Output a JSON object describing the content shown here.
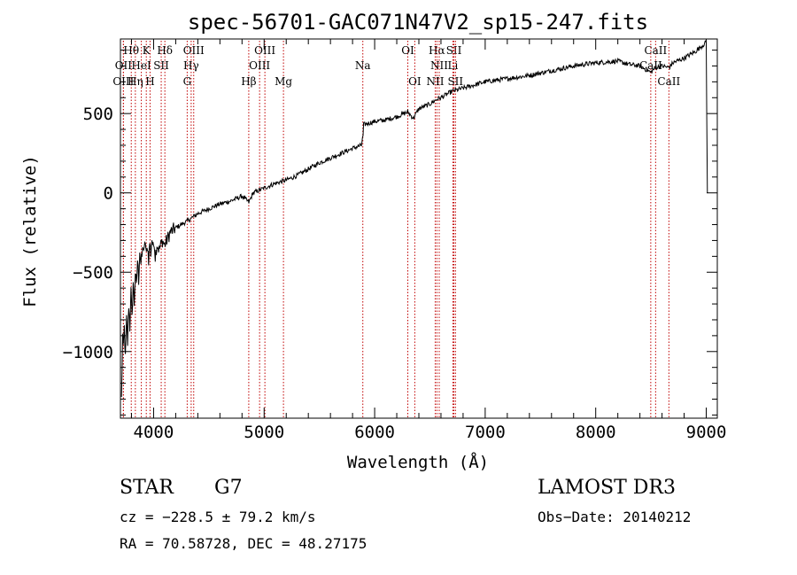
{
  "chart_data": {
    "type": "line",
    "title": "spec-56701-GAC071N47V2_sp15-247.fits",
    "xlabel": "Wavelength (Å)",
    "ylabel": "Flux (relative)",
    "xlim": [
      3700,
      9100
    ],
    "ylim": [
      -1420,
      970
    ],
    "xticks": [
      4000,
      5000,
      6000,
      7000,
      8000,
      9000
    ],
    "xtick_labels": [
      "4000",
      "5000",
      "6000",
      "7000",
      "8000",
      "9000"
    ],
    "yticks": [
      500,
      0,
      -500,
      -1000
    ],
    "ytick_labels": [
      "500",
      "0",
      "−500",
      "−1000"
    ],
    "series": [
      {
        "name": "spectrum",
        "x": [
          3710,
          3720,
          3725,
          3735,
          3745,
          3755,
          3765,
          3775,
          3785,
          3795,
          3805,
          3815,
          3825,
          3835,
          3845,
          3855,
          3865,
          3875,
          3885,
          3895,
          3905,
          3915,
          3925,
          3935,
          3945,
          3955,
          3965,
          3975,
          3985,
          3995,
          4005,
          4015,
          4030,
          4050,
          4080,
          4100,
          4150,
          4200,
          4300,
          4400,
          4500,
          4600,
          4700,
          4800,
          4862,
          4900,
          5000,
          5100,
          5200,
          5300,
          5400,
          5500,
          5600,
          5700,
          5800,
          5880,
          5895,
          5900,
          5950,
          6000,
          6100,
          6200,
          6300,
          6350,
          6400,
          6500,
          6563,
          6600,
          6700,
          6800,
          6900,
          7000,
          7200,
          7400,
          7600,
          7800,
          8000,
          8200,
          8300,
          8400,
          8498,
          8542,
          8600,
          8662,
          8700,
          8800,
          8850,
          8900,
          8950,
          9000,
          9010
        ],
        "values": [
          -1300,
          -900,
          -1000,
          -850,
          -1050,
          -800,
          -950,
          -700,
          -850,
          -620,
          -800,
          -560,
          -700,
          -500,
          -600,
          -420,
          -550,
          -360,
          -450,
          -400,
          -330,
          -380,
          -300,
          -400,
          -330,
          -420,
          -310,
          -380,
          -290,
          -350,
          -300,
          -400,
          -320,
          -360,
          -300,
          -330,
          -250,
          -220,
          -180,
          -130,
          -100,
          -70,
          -50,
          -20,
          -60,
          0,
          30,
          60,
          80,
          110,
          150,
          190,
          220,
          250,
          280,
          300,
          360,
          430,
          440,
          450,
          460,
          480,
          510,
          470,
          530,
          560,
          590,
          600,
          640,
          660,
          680,
          700,
          720,
          740,
          770,
          800,
          820,
          830,
          810,
          800,
          760,
          790,
          800,
          790,
          820,
          850,
          870,
          890,
          920,
          950,
          0
        ]
      }
    ],
    "lines": [
      {
        "label": "Hθ",
        "x": 3798,
        "row": 1
      },
      {
        "label": "K",
        "x": 3934,
        "row": 1
      },
      {
        "label": "Hδ",
        "x": 4102,
        "row": 1
      },
      {
        "label": "OIII",
        "x": 4363,
        "row": 1
      },
      {
        "label": "OIII",
        "x": 5007,
        "row": 1
      },
      {
        "label": "OI",
        "x": 6300,
        "row": 1
      },
      {
        "label": "Hα",
        "x": 6563,
        "row": 1
      },
      {
        "label": "SII",
        "x": 6717,
        "row": 1
      },
      {
        "label": "CaII",
        "x": 8542,
        "row": 1
      },
      {
        "label": "OII",
        "x": 3727,
        "row": 2
      },
      {
        "label": "HeI",
        "x": 3889,
        "row": 2
      },
      {
        "label": "SII",
        "x": 4069,
        "row": 2
      },
      {
        "label": "Hγ",
        "x": 4340,
        "row": 2
      },
      {
        "label": "OIII",
        "x": 4959,
        "row": 2
      },
      {
        "label": "Na",
        "x": 5893,
        "row": 2
      },
      {
        "label": "NII",
        "x": 6584,
        "row": 2
      },
      {
        "label": "Li",
        "x": 6708,
        "row": 2
      },
      {
        "label": "CaII",
        "x": 8498,
        "row": 2
      },
      {
        "label": "OIII",
        "x": 3727,
        "row": 3
      },
      {
        "label": "Hη",
        "x": 3835,
        "row": 3
      },
      {
        "label": "H",
        "x": 3968,
        "row": 3
      },
      {
        "label": "G",
        "x": 4304,
        "row": 3
      },
      {
        "label": "Hβ",
        "x": 4861,
        "row": 3
      },
      {
        "label": "Mg",
        "x": 5175,
        "row": 3
      },
      {
        "label": "OI",
        "x": 6363,
        "row": 3
      },
      {
        "label": "NII",
        "x": 6548,
        "row": 3
      },
      {
        "label": "SII",
        "x": 6731,
        "row": 3
      },
      {
        "label": "CaII",
        "x": 8662,
        "row": 3
      }
    ]
  },
  "info": {
    "class": "STAR",
    "subclass": "G7",
    "survey": "LAMOST DR3",
    "cz": "cz = −228.5 ± 79.2 km/s",
    "obs_date": "Obs−Date: 20140212",
    "radec": "RA =  70.58728, DEC =  48.27175"
  }
}
